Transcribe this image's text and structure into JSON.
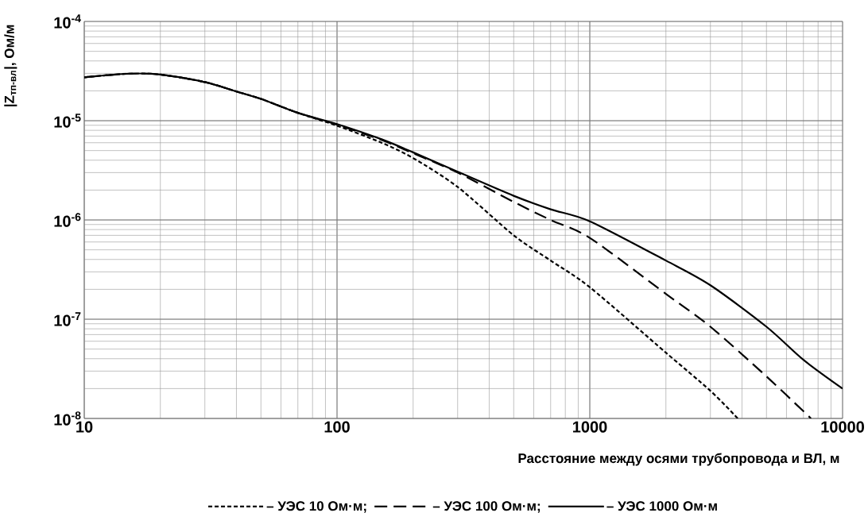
{
  "chart_data": {
    "type": "line",
    "xlabel": "Расстояние между осями трубопровода и ВЛ, м",
    "ylabel": "|Z$_{тп-вл}$|, Ом/м",
    "log": "xy",
    "grid": true,
    "legend": "bottom",
    "marker": "none",
    "xlim": [
      10,
      10000
    ],
    "xticks": [
      10,
      100,
      1000,
      10000
    ],
    "ylim": [
      1e-08,
      0.0001
    ],
    "yticks": [
      {
        "value": 1e-08,
        "label": "10$^{-8}$"
      },
      {
        "value": 1e-07,
        "label": "10$^{-7}$"
      },
      {
        "value": 1e-06,
        "label": "10$^{-6}$"
      },
      {
        "value": 1e-05,
        "label": "10$^{-5}$"
      },
      {
        "value": 0.0001,
        "label": "10$^{-4}$"
      }
    ],
    "series": [
      {
        "name": "– УЭС 10 Ом·м;",
        "color": "#000000",
        "line_style": "dotted",
        "x": [
          10,
          15,
          20,
          30,
          40,
          50,
          70,
          100,
          150,
          200,
          300,
          500,
          700,
          1000,
          2000,
          3000,
          3850
        ],
        "values": [
          2.74e-05,
          2.98e-05,
          2.92e-05,
          2.45e-05,
          1.97e-05,
          1.66e-05,
          1.2e-05,
          8.9e-06,
          6e-06,
          4.2e-06,
          2.15e-06,
          7e-07,
          3.9e-07,
          2.1e-07,
          4.6e-08,
          1.9e-08,
          1e-08
        ]
      },
      {
        "name": "– УЭС 100 Ом·м;",
        "color": "#000000",
        "line_style": "dashed",
        "x": [
          10,
          15,
          20,
          30,
          40,
          50,
          70,
          100,
          150,
          200,
          300,
          500,
          700,
          1000,
          2000,
          3000,
          5000,
          7500
        ],
        "values": [
          2.74e-05,
          2.98e-05,
          2.92e-05,
          2.45e-05,
          1.97e-05,
          1.66e-05,
          1.2e-05,
          9.1e-06,
          6.4e-06,
          4.7e-06,
          3e-06,
          1.52e-06,
          1e-06,
          6.6e-07,
          1.8e-07,
          8.4e-08,
          2.65e-08,
          1e-08
        ]
      },
      {
        "name": "– УЭС 1000 Ом·м",
        "color": "#000000",
        "line_style": "solid",
        "x": [
          10,
          15,
          20,
          30,
          40,
          50,
          70,
          100,
          150,
          200,
          300,
          500,
          700,
          1000,
          2000,
          3000,
          5000,
          7000,
          10000
        ],
        "values": [
          2.74e-05,
          2.98e-05,
          2.92e-05,
          2.45e-05,
          1.97e-05,
          1.66e-05,
          1.2e-05,
          9.25e-06,
          6.5e-06,
          4.8e-06,
          3.06e-06,
          1.75e-06,
          1.28e-06,
          9.7e-07,
          3.9e-07,
          2.2e-07,
          8.4e-08,
          3.9e-08,
          2e-08
        ]
      }
    ]
  }
}
